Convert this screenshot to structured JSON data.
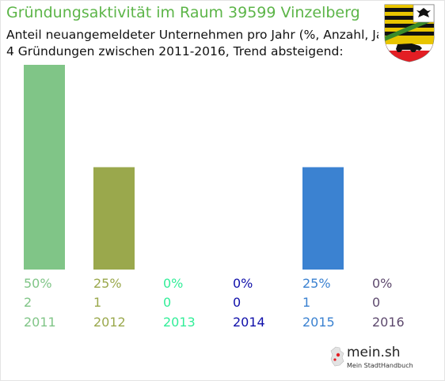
{
  "header": {
    "title": "Gründungsaktivität im Raum 39599 Vinzelberg",
    "subtitle_line1": "Anteil neuangemeldeter Unternehmen pro Jahr (%, Anzahl, Jahr)",
    "subtitle_line2": "4 Gründungen zwischen 2011-2016, Trend absteigend:"
  },
  "branding": {
    "crest_icon": "coat-of-arms-saxony-anhalt",
    "logo_text": "mein.sh",
    "logo_tagline": "Mein StadtHandbuch"
  },
  "colors": {
    "title": "#5cb548"
  },
  "chart_data": {
    "type": "bar",
    "categories": [
      "2011",
      "2012",
      "2013",
      "2014",
      "2015",
      "2016"
    ],
    "values": [
      50,
      25,
      0,
      0,
      25,
      0
    ],
    "percent_labels": [
      "50%",
      "25%",
      "0%",
      "0%",
      "25%",
      "0%"
    ],
    "counts": [
      2,
      1,
      0,
      0,
      1,
      0
    ],
    "colors": [
      "#80c587",
      "#9aa84c",
      "#33ee99",
      "#1010aa",
      "#3b82d1",
      "#5e4a6e"
    ],
    "ylim": [
      0,
      50
    ]
  }
}
